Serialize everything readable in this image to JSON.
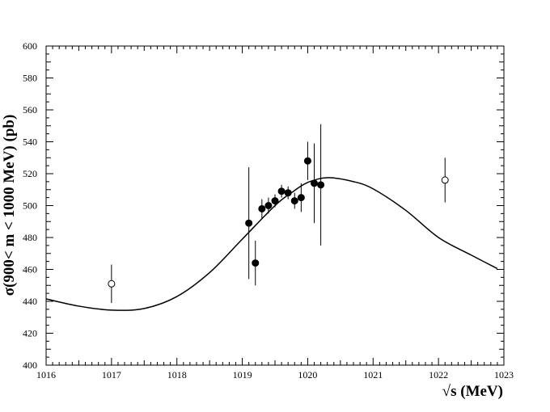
{
  "chart_data": {
    "type": "scatter",
    "title": "",
    "xlabel": "√s (MeV)",
    "ylabel": "σ(900< m < 1000 MeV) (pb)",
    "xlim": [
      1016,
      1023
    ],
    "ylim": [
      400,
      600
    ],
    "x_ticks": [
      1016,
      1017,
      1018,
      1019,
      1020,
      1021,
      1022,
      1023
    ],
    "y_ticks": [
      400,
      420,
      440,
      460,
      480,
      500,
      520,
      540,
      560,
      580,
      600
    ],
    "grid": false,
    "legend": "none",
    "series": [
      {
        "marker": "filled-circle",
        "points": [
          {
            "x": 1019.1,
            "y": 489,
            "err": 35
          },
          {
            "x": 1019.2,
            "y": 464,
            "err": 14
          },
          {
            "x": 1019.3,
            "y": 498,
            "err": 6
          },
          {
            "x": 1019.4,
            "y": 500,
            "err": 5
          },
          {
            "x": 1019.5,
            "y": 503,
            "err": 4
          },
          {
            "x": 1019.6,
            "y": 509,
            "err": 4
          },
          {
            "x": 1019.7,
            "y": 508,
            "err": 4
          },
          {
            "x": 1019.8,
            "y": 503,
            "err": 5
          },
          {
            "x": 1019.9,
            "y": 505,
            "err": 9
          },
          {
            "x": 1020.0,
            "y": 528,
            "err": 12
          },
          {
            "x": 1020.1,
            "y": 514,
            "err": 25
          },
          {
            "x": 1020.2,
            "y": 513,
            "err": 38
          }
        ]
      },
      {
        "marker": "open-circle",
        "points": [
          {
            "x": 1017.0,
            "y": 451,
            "err": 12
          },
          {
            "x": 1022.1,
            "y": 516,
            "err": 14
          }
        ]
      },
      {
        "type": "line",
        "x": [
          1016.0,
          1016.5,
          1017.0,
          1017.5,
          1018.0,
          1018.5,
          1019.0,
          1019.5,
          1019.75,
          1020.0,
          1020.3,
          1020.7,
          1021.0,
          1021.5,
          1022.0,
          1022.5,
          1022.9
        ],
        "y": [
          441.5,
          437,
          434.5,
          435.5,
          443,
          458,
          479,
          500,
          508,
          514.5,
          517.5,
          515,
          510.5,
          497,
          480,
          469,
          460.5
        ]
      }
    ]
  }
}
